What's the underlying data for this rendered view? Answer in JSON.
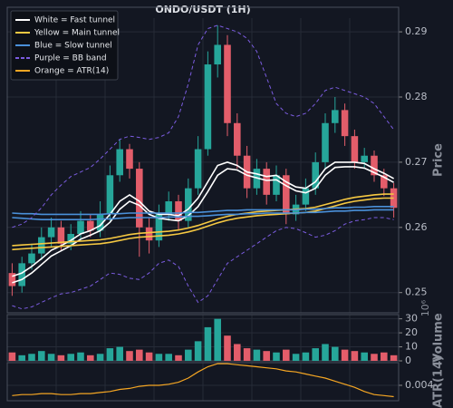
{
  "chart_data": [
    {
      "type": "candlestick",
      "title": "ONDO/USDT (1H)",
      "y_label": "Price",
      "legend": "upper left",
      "grid": true,
      "up_color": "#26a69a",
      "down_color": "#e35d6a",
      "ylim": [
        0.2469,
        0.2921
      ],
      "yticks": [
        0.25,
        0.26,
        0.27,
        0.28,
        0.29
      ],
      "open": [
        0.253,
        0.251,
        0.2545,
        0.256,
        0.2585,
        0.26,
        0.2575,
        0.259,
        0.261,
        0.2595,
        0.262,
        0.268,
        0.272,
        0.269,
        0.26,
        0.258,
        0.262,
        0.264,
        0.261,
        0.266,
        0.272,
        0.285,
        0.288,
        0.276,
        0.271,
        0.266,
        0.269,
        0.265,
        0.268,
        0.262,
        0.2635,
        0.266,
        0.27,
        0.276,
        0.278,
        0.274,
        0.27,
        0.271,
        0.268,
        0.266
      ],
      "high": [
        0.2545,
        0.2555,
        0.2575,
        0.26,
        0.2615,
        0.261,
        0.2605,
        0.2625,
        0.262,
        0.264,
        0.2695,
        0.2735,
        0.2728,
        0.27,
        0.2615,
        0.2635,
        0.2655,
        0.265,
        0.2675,
        0.274,
        0.287,
        0.291,
        0.2895,
        0.2775,
        0.2725,
        0.2705,
        0.27,
        0.2695,
        0.269,
        0.265,
        0.2675,
        0.2715,
        0.2775,
        0.28,
        0.279,
        0.275,
        0.2722,
        0.2718,
        0.269,
        0.2668
      ],
      "low": [
        0.2495,
        0.25,
        0.2535,
        0.255,
        0.257,
        0.2565,
        0.2565,
        0.258,
        0.2585,
        0.2585,
        0.261,
        0.267,
        0.2675,
        0.2555,
        0.256,
        0.257,
        0.261,
        0.2595,
        0.26,
        0.265,
        0.271,
        0.283,
        0.274,
        0.269,
        0.2645,
        0.265,
        0.2635,
        0.264,
        0.2605,
        0.261,
        0.2625,
        0.265,
        0.269,
        0.2745,
        0.2725,
        0.269,
        0.269,
        0.267,
        0.2648,
        0.2615
      ],
      "close": [
        0.251,
        0.2545,
        0.256,
        0.2585,
        0.26,
        0.2575,
        0.259,
        0.261,
        0.2595,
        0.262,
        0.268,
        0.272,
        0.269,
        0.26,
        0.258,
        0.262,
        0.264,
        0.261,
        0.266,
        0.272,
        0.285,
        0.288,
        0.276,
        0.271,
        0.266,
        0.269,
        0.265,
        0.268,
        0.262,
        0.2635,
        0.266,
        0.27,
        0.276,
        0.278,
        0.274,
        0.27,
        0.271,
        0.268,
        0.266,
        0.263
      ],
      "series": [
        {
          "name": "White = Fast tunnel",
          "color": "#ffffff",
          "dash": false,
          "lines": [
            [
              0.2525,
              0.253,
              0.254,
              0.2552,
              0.2565,
              0.2572,
              0.258,
              0.259,
              0.2595,
              0.2603,
              0.262,
              0.264,
              0.265,
              0.264,
              0.2625,
              0.262,
              0.262,
              0.2618,
              0.2628,
              0.2645,
              0.267,
              0.2695,
              0.27,
              0.2695,
              0.2685,
              0.2682,
              0.2678,
              0.268,
              0.267,
              0.2662,
              0.266,
              0.267,
              0.269,
              0.27,
              0.27,
              0.27,
              0.2698,
              0.269,
              0.2683,
              0.2675
            ],
            [
              0.2515,
              0.252,
              0.253,
              0.2543,
              0.2556,
              0.2564,
              0.2572,
              0.2582,
              0.2588,
              0.2595,
              0.2608,
              0.2628,
              0.264,
              0.2634,
              0.262,
              0.2614,
              0.2612,
              0.261,
              0.2618,
              0.2632,
              0.2655,
              0.268,
              0.269,
              0.2688,
              0.268,
              0.2676,
              0.2672,
              0.2673,
              0.2664,
              0.2656,
              0.2653,
              0.266,
              0.268,
              0.2692,
              0.2693,
              0.2693,
              0.2691,
              0.2684,
              0.2677,
              0.2669
            ]
          ]
        },
        {
          "name": "Yellow = Main tunnel",
          "color": "#f5c842",
          "dash": false,
          "lines": [
            [
              0.2572,
              0.2573,
              0.2574,
              0.2575,
              0.2576,
              0.2577,
              0.2578,
              0.2579,
              0.258,
              0.2581,
              0.2583,
              0.2586,
              0.2589,
              0.2591,
              0.2592,
              0.2593,
              0.2594,
              0.2596,
              0.2599,
              0.2603,
              0.2608,
              0.2613,
              0.2617,
              0.262,
              0.2622,
              0.2624,
              0.2625,
              0.2626,
              0.2627,
              0.2628,
              0.2629,
              0.2631,
              0.2635,
              0.2639,
              0.2643,
              0.2646,
              0.2648,
              0.265,
              0.2651,
              0.2651
            ],
            [
              0.2566,
              0.2567,
              0.2568,
              0.2569,
              0.257,
              0.2571,
              0.2572,
              0.2573,
              0.2574,
              0.2575,
              0.2577,
              0.258,
              0.2583,
              0.2585,
              0.2586,
              0.2587,
              0.2588,
              0.259,
              0.2593,
              0.2597,
              0.2602,
              0.2607,
              0.2611,
              0.2614,
              0.2616,
              0.2618,
              0.2619,
              0.262,
              0.2621,
              0.2622,
              0.2623,
              0.2625,
              0.2629,
              0.2633,
              0.2637,
              0.264,
              0.2642,
              0.2644,
              0.2645,
              0.2645
            ]
          ]
        },
        {
          "name": "Blue = Slow tunnel",
          "color": "#4a90d9",
          "dash": false,
          "lines": [
            [
              0.2622,
              0.2621,
              0.2621,
              0.262,
              0.262,
              0.262,
              0.262,
              0.262,
              0.262,
              0.262,
              0.2621,
              0.2621,
              0.2622,
              0.2622,
              0.2622,
              0.2622,
              0.2622,
              0.2622,
              0.2623,
              0.2623,
              0.2624,
              0.2625,
              0.2626,
              0.2626,
              0.2627,
              0.2627,
              0.2627,
              0.2627,
              0.2627,
              0.2627,
              0.2628,
              0.2628,
              0.2629,
              0.263,
              0.263,
              0.2631,
              0.2631,
              0.2632,
              0.2632,
              0.2632
            ],
            [
              0.2615,
              0.2614,
              0.2613,
              0.2612,
              0.2612,
              0.2612,
              0.2612,
              0.2612,
              0.2612,
              0.2613,
              0.2613,
              0.2614,
              0.2615,
              0.2615,
              0.2615,
              0.2615,
              0.2616,
              0.2616,
              0.2617,
              0.2617,
              0.2618,
              0.2619,
              0.262,
              0.262,
              0.2621,
              0.2621,
              0.2622,
              0.2622,
              0.2622,
              0.2622,
              0.2623,
              0.2623,
              0.2624,
              0.2625,
              0.2625,
              0.2626,
              0.2626,
              0.2627,
              0.2627,
              0.2627
            ]
          ]
        },
        {
          "name": "Purple = BB band",
          "color": "#7b5ce0",
          "dash": true,
          "lines": [
            [
              0.26,
              0.2605,
              0.2615,
              0.263,
              0.265,
              0.2665,
              0.2678,
              0.2685,
              0.2692,
              0.2705,
              0.272,
              0.2735,
              0.274,
              0.2738,
              0.2735,
              0.2738,
              0.2745,
              0.277,
              0.282,
              0.288,
              0.2905,
              0.291,
              0.2905,
              0.29,
              0.289,
              0.287,
              0.283,
              0.279,
              0.2775,
              0.277,
              0.2775,
              0.279,
              0.281,
              0.2815,
              0.281,
              0.2805,
              0.28,
              0.279,
              0.277,
              0.275
            ],
            [
              0.248,
              0.2475,
              0.2478,
              0.2485,
              0.2492,
              0.2498,
              0.25,
              0.2505,
              0.251,
              0.252,
              0.253,
              0.2528,
              0.2522,
              0.252,
              0.253,
              0.2545,
              0.255,
              0.254,
              0.251,
              0.2485,
              0.2495,
              0.252,
              0.2545,
              0.2555,
              0.2565,
              0.2575,
              0.2585,
              0.2595,
              0.26,
              0.2598,
              0.2592,
              0.2585,
              0.2588,
              0.2595,
              0.2605,
              0.261,
              0.2612,
              0.2615,
              0.2615,
              0.2612
            ]
          ]
        }
      ]
    },
    {
      "type": "bar",
      "y_label": "Volume",
      "offset_label": "10⁶",
      "grid": true,
      "ylim": [
        0,
        33
      ],
      "yticks": [
        0,
        10,
        20,
        30
      ],
      "values": [
        6,
        4,
        5,
        7,
        5,
        4,
        5,
        6,
        4,
        5,
        9,
        10,
        7,
        8,
        6,
        5,
        5,
        4,
        8,
        14,
        24,
        30,
        18,
        12,
        9,
        8,
        7,
        6,
        8,
        5,
        6,
        9,
        12,
        10,
        8,
        7,
        6,
        5,
        6,
        4
      ]
    },
    {
      "type": "line",
      "y_label": "ATR(14)",
      "grid": true,
      "ylim": [
        0.0025,
        0.0062
      ],
      "yticks": [
        0.004
      ],
      "series": [
        {
          "name": "Orange = ATR(14)",
          "color": "#f5a623",
          "values": [
            0.003,
            0.0031,
            0.0031,
            0.0032,
            0.0032,
            0.0031,
            0.0031,
            0.0032,
            0.0032,
            0.0033,
            0.0034,
            0.0036,
            0.0037,
            0.0039,
            0.004,
            0.004,
            0.0041,
            0.0043,
            0.0047,
            0.0053,
            0.0058,
            0.0061,
            0.0061,
            0.006,
            0.0059,
            0.0058,
            0.0057,
            0.0056,
            0.0054,
            0.0053,
            0.0051,
            0.0049,
            0.0047,
            0.0044,
            0.0041,
            0.0038,
            0.0034,
            0.0031,
            0.003,
            0.0029
          ]
        }
      ]
    }
  ]
}
